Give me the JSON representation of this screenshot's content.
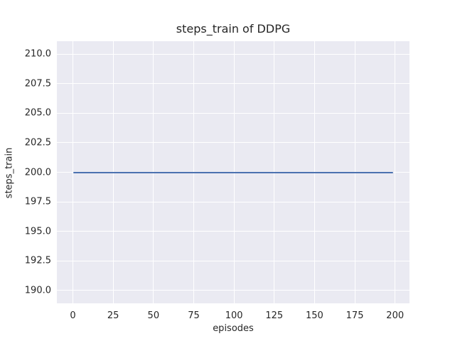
{
  "chart_data": {
    "type": "line",
    "title": "steps_train of DDPG",
    "xlabel": "episodes",
    "ylabel": "steps_train",
    "xlim": [
      -9.95,
      208.95
    ],
    "ylim": [
      188.9,
      211.1
    ],
    "xticks": [
      0,
      25,
      50,
      75,
      100,
      125,
      150,
      175,
      200
    ],
    "xtick_labels": [
      "0",
      "25",
      "50",
      "75",
      "100",
      "125",
      "150",
      "175",
      "200"
    ],
    "yticks": [
      190.0,
      192.5,
      195.0,
      197.5,
      200.0,
      202.5,
      205.0,
      207.5,
      210.0
    ],
    "ytick_labels": [
      "190.0",
      "192.5",
      "195.0",
      "197.5",
      "200.0",
      "202.5",
      "205.0",
      "207.5",
      "210.0"
    ],
    "grid": true,
    "legend": false,
    "series": [
      {
        "name": "steps_train",
        "color": "#4C72B0",
        "x_start": 0,
        "x_end": 199,
        "y_constant": 200,
        "description": "constant line: steps_train = 200 for every episode from 0 to 199"
      }
    ],
    "style": {
      "figure_background": "#FFFFFF",
      "axes_background": "#EAEAF2",
      "grid_color": "#FFFFFF",
      "text_color": "#262626"
    }
  }
}
